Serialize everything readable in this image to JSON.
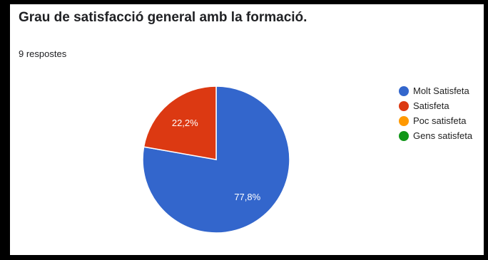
{
  "chart_data": {
    "type": "pie",
    "title": "Grau de satisfacció general amb la formació.",
    "subtitle": "9 respostes",
    "categories": [
      "Molt Satisfeta",
      "Satisfeta",
      "Poc satisfeta",
      "Gens satisfeta"
    ],
    "values": [
      7,
      2,
      0,
      0
    ],
    "data_labels": [
      "77,8%",
      "22,2%",
      "",
      ""
    ],
    "colors": [
      "#3366cc",
      "#dc3912",
      "#ff9900",
      "#109618"
    ],
    "legend_position": "right",
    "start_angle": "12 o'clock, clockwise"
  }
}
